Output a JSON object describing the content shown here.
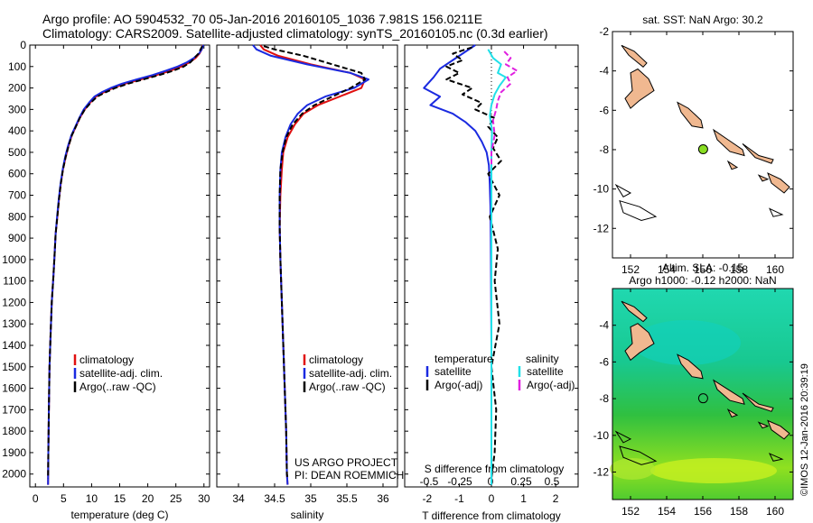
{
  "header": {
    "line1": "Argo profile: AO 5904532_70 05-Jan-2016 20160105_1036 7.981S 156.0211E",
    "line2": "Climatology: CARS2009. Satellite-adjusted climatology: synTS_20160105.nc (0.3d earlier)"
  },
  "colors": {
    "climatology": "#e01010",
    "satellite": "#1a2ae0",
    "argo": "#000000",
    "sal_satellite": "#20e0e8",
    "sal_argo": "#e020e0",
    "land": "#f0b890",
    "float_marker": "#88dd22"
  },
  "chart_data": [
    {
      "type": "line",
      "id": "temperature",
      "xlabel": "temperature (deg C)",
      "ylabel": "",
      "xlim": [
        -1,
        31
      ],
      "ylim": [
        2060,
        0
      ],
      "xticks": [
        0,
        5,
        10,
        15,
        20,
        25,
        30
      ],
      "yticks": [
        0,
        100,
        200,
        300,
        400,
        500,
        600,
        700,
        800,
        900,
        1000,
        1100,
        1200,
        1300,
        1400,
        1500,
        1600,
        1700,
        1800,
        1900,
        2000
      ],
      "legend": [
        "climatology",
        "satellite-adj. clim.",
        "Argo(..raw -QC)"
      ],
      "series": [
        {
          "name": "climatology",
          "color": "#e01010",
          "x": [
            29.8,
            29.6,
            29.2,
            28.5,
            27.5,
            26,
            24,
            21.5,
            18.8,
            16,
            13.8,
            12.2,
            10.8,
            9.7,
            8.8,
            7.9,
            7.2,
            6.5,
            5.9,
            5.4,
            4.9,
            4.5,
            4.2,
            3.9,
            3.6,
            3.4,
            3.2,
            2.9,
            2.7,
            2.5,
            2.4,
            2.3,
            2.25
          ],
          "y": [
            0,
            20,
            40,
            60,
            80,
            100,
            120,
            140,
            160,
            180,
            200,
            220,
            240,
            270,
            300,
            340,
            380,
            420,
            470,
            520,
            580,
            650,
            720,
            800,
            880,
            980,
            1080,
            1200,
            1350,
            1500,
            1700,
            1900,
            2050
          ]
        },
        {
          "name": "satellite-adj. clim.",
          "color": "#1a2ae0",
          "x": [
            29.9,
            29.6,
            29.1,
            28.2,
            27,
            25.3,
            23.2,
            20.8,
            18,
            15.4,
            13.4,
            11.8,
            10.5,
            9.5,
            8.6,
            7.8,
            7.1,
            6.4,
            5.8,
            5.3,
            4.85,
            4.45,
            4.15,
            3.85,
            3.6,
            3.4,
            3.2,
            2.9,
            2.7,
            2.5,
            2.4,
            2.3,
            2.25
          ],
          "y": [
            0,
            20,
            40,
            60,
            80,
            100,
            120,
            140,
            160,
            180,
            200,
            220,
            240,
            270,
            300,
            340,
            380,
            420,
            470,
            520,
            580,
            650,
            720,
            800,
            880,
            980,
            1080,
            1200,
            1350,
            1500,
            1700,
            1900,
            2050
          ]
        },
        {
          "name": "Argo(..raw -QC)",
          "color": "#000000",
          "x": [
            29.7,
            29.4,
            29,
            28.3,
            27.6,
            26.4,
            24.5,
            22,
            19.2,
            16.5,
            14.2,
            12.5,
            11,
            9.8,
            8.8,
            7.9,
            7.2,
            6.5,
            5.9,
            5.4,
            4.9,
            4.5,
            4.2,
            3.9,
            3.6,
            3.4,
            3.2,
            2.9,
            2.7,
            2.5,
            2.4,
            2.3,
            2.25
          ],
          "y": [
            5,
            20,
            40,
            60,
            80,
            100,
            120,
            140,
            160,
            180,
            200,
            220,
            240,
            270,
            300,
            340,
            380,
            420,
            470,
            520,
            580,
            650,
            720,
            800,
            880,
            980,
            1080,
            1200,
            1350,
            1500,
            1700,
            1900,
            2020
          ]
        }
      ]
    },
    {
      "type": "line",
      "id": "salinity",
      "xlabel": "salinity",
      "ylabel": "",
      "xlim": [
        33.7,
        36.2
      ],
      "ylim": [
        2060,
        0
      ],
      "xticks": [
        34,
        34.5,
        35,
        35.5,
        36
      ],
      "legend": [
        "climatology",
        "satellite-adj. clim.",
        "Argo(..raw -QC)"
      ],
      "annotations": [
        "US ARGO PROJECT",
        "PI: DEAN ROEMMICH"
      ],
      "series": [
        {
          "name": "climatology",
          "color": "#e01010",
          "x": [
            34.3,
            34.35,
            34.55,
            35.0,
            35.55,
            35.75,
            35.7,
            35.4,
            35.1,
            34.9,
            34.78,
            34.68,
            34.62,
            34.6,
            34.58,
            34.57,
            34.58,
            34.6,
            34.62,
            34.64,
            34.66,
            34.67,
            34.68
          ],
          "y": [
            0,
            20,
            50,
            90,
            130,
            160,
            200,
            240,
            280,
            320,
            370,
            430,
            500,
            580,
            700,
            850,
            1000,
            1200,
            1400,
            1600,
            1800,
            2000,
            2050
          ]
        },
        {
          "name": "satellite-adj. clim.",
          "color": "#1a2ae0",
          "x": [
            34.2,
            34.25,
            34.45,
            34.95,
            35.55,
            35.8,
            35.6,
            35.2,
            34.95,
            34.82,
            34.72,
            34.65,
            34.6,
            34.58,
            34.57,
            34.57,
            34.58,
            34.6,
            34.62,
            34.64,
            34.66,
            34.67,
            34.68
          ],
          "y": [
            0,
            20,
            50,
            90,
            130,
            160,
            200,
            240,
            280,
            320,
            370,
            430,
            500,
            580,
            700,
            850,
            1000,
            1200,
            1400,
            1600,
            1800,
            2000,
            2050
          ]
        },
        {
          "name": "Argo(..raw -QC)",
          "color": "#000000",
          "x": [
            34.35,
            34.5,
            34.9,
            35.3,
            35.7,
            35.75,
            35.55,
            35.3,
            35.05,
            34.88,
            34.75,
            34.66,
            34.61,
            34.58,
            34.57,
            34.57,
            34.58,
            34.6,
            34.62,
            34.64,
            34.66,
            34.67,
            34.68
          ],
          "y": [
            5,
            20,
            50,
            90,
            130,
            160,
            200,
            240,
            280,
            320,
            370,
            430,
            500,
            580,
            700,
            850,
            1000,
            1200,
            1400,
            1600,
            1800,
            2000,
            2020
          ]
        }
      ]
    },
    {
      "type": "line",
      "id": "difference",
      "xlabel": "T difference from climatology",
      "x2label": "S difference from climatology",
      "xlim": [
        -2.7,
        2.7
      ],
      "ylim": [
        2060,
        0
      ],
      "xticks": [
        -2,
        -1,
        0,
        1,
        2
      ],
      "xtick_labels": [
        "-2",
        "-1",
        "0",
        "1",
        "2"
      ],
      "x2ticks": [
        -0.5,
        -0.25,
        0,
        0.25,
        0.5
      ],
      "x2tick_labels": [
        "-0.5",
        "-0.25",
        "0",
        "0.25",
        "0.5"
      ],
      "legend_headers": [
        "temperature",
        "salinity"
      ],
      "legend": [
        "satellite",
        "Argo(-adj)",
        "satellite",
        "Argo(-adj)"
      ],
      "series": [
        {
          "name": "T satellite",
          "color": "#1a2ae0",
          "x": [
            -0.5,
            -0.9,
            -1.3,
            -1.6,
            -1.8,
            -2.1,
            -1.6,
            -1.9,
            -1.2,
            -0.8,
            -0.5,
            -0.3,
            -0.15,
            -0.08,
            -0.05,
            -0.03,
            -0.02,
            -0.01,
            0,
            0,
            0,
            0
          ],
          "y": [
            0,
            40,
            80,
            110,
            150,
            200,
            240,
            280,
            320,
            360,
            400,
            450,
            500,
            560,
            650,
            750,
            900,
            1100,
            1400,
            1700,
            1900,
            2050
          ]
        },
        {
          "name": "T Argo(-adj)",
          "color": "#000000",
          "x": [
            -0.6,
            -1.2,
            -0.9,
            -1.4,
            -1.0,
            -1.4,
            -0.6,
            -0.9,
            -0.3,
            -0.5,
            0.1,
            -0.1,
            0.2,
            0.05,
            0.3,
            -0.1,
            0.25,
            -0.05,
            0.2,
            0.1,
            0.25,
            0.0,
            0.15,
            0.1,
            0.0
          ],
          "y": [
            10,
            40,
            70,
            100,
            130,
            160,
            200,
            230,
            270,
            300,
            340,
            380,
            430,
            480,
            540,
            600,
            700,
            800,
            950,
            1100,
            1300,
            1500,
            1700,
            1900,
            2020
          ]
        },
        {
          "name": "S satellite",
          "color": "#20e0e8",
          "x": [
            -0.1,
            0.05,
            0.3,
            0.2,
            0.45,
            0.25,
            0.1,
            0.0,
            -0.05,
            0.02,
            0.0,
            0.0,
            0.0,
            0.0,
            0.0
          ],
          "y": [
            20,
            60,
            90,
            130,
            150,
            190,
            230,
            280,
            330,
            400,
            500,
            650,
            900,
            1400,
            2050
          ]
        },
        {
          "name": "S Argo(-adj)",
          "color": "#e020e0",
          "x": [
            0.4,
            0.6,
            0.45,
            0.8,
            0.5,
            0.6,
            0.3,
            0.2,
            0.15,
            0.05,
            0.1,
            0.0,
            0.0
          ],
          "y": [
            30,
            60,
            90,
            120,
            150,
            180,
            220,
            260,
            300,
            350,
            420,
            500,
            560
          ]
        }
      ]
    },
    {
      "type": "map",
      "id": "sst-map",
      "title": "sat. SST: NaN Argo: 30.2",
      "xlim": [
        151,
        161
      ],
      "ylim": [
        -13.5,
        -2
      ],
      "xticks": [
        152,
        154,
        156,
        158,
        160
      ],
      "yticks": [
        -2,
        -4,
        -6,
        -8,
        -10,
        -12
      ],
      "float": {
        "lon": 156.02,
        "lat": -7.98,
        "filled": true
      }
    },
    {
      "type": "map",
      "id": "sla-map",
      "title": "Altim. SLA: -0.15",
      "subtitle": "Argo h1000: -0.12 h2000: NaN",
      "xlim": [
        151,
        161
      ],
      "ylim": [
        -13.5,
        -2
      ],
      "xticks": [
        152,
        154,
        156,
        158,
        160
      ],
      "yticks": [
        -4,
        -6,
        -8,
        -10,
        -12
      ],
      "float": {
        "lon": 156.02,
        "lat": -7.98,
        "filled": false
      }
    }
  ],
  "footer": {
    "credit": "©IMOS 12-Jan-2016 20:39:19"
  }
}
